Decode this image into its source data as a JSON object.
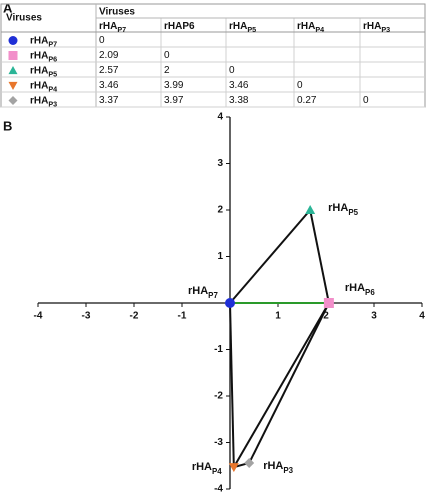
{
  "table": {
    "panel_label": "A",
    "corner": "Viruses",
    "header": "Viruses",
    "columns": [
      {
        "base": "rHA",
        "sub": "P7"
      },
      {
        "base": "rHAP6"
      },
      {
        "base": "rHA",
        "sub": "P5"
      },
      {
        "base": "rHA",
        "sub": "P4"
      },
      {
        "base": "rHA",
        "sub": "P3"
      }
    ],
    "rows": [
      {
        "base": "rHA",
        "sub": "P7",
        "values": [
          0
        ]
      },
      {
        "base": "rHA",
        "sub": "P6",
        "values": [
          2.09,
          0
        ]
      },
      {
        "base": "rHA",
        "sub": "P5",
        "values": [
          2.57,
          2,
          0
        ]
      },
      {
        "base": "rHA",
        "sub": "P4",
        "values": [
          3.46,
          3.99,
          3.46,
          0
        ]
      },
      {
        "base": "rHA",
        "sub": "P3",
        "values": [
          3.37,
          3.97,
          3.38,
          0.27,
          0
        ]
      }
    ]
  },
  "chart_data": {
    "type": "scatter",
    "panel_label": "B",
    "xlim": [
      -4,
      4
    ],
    "ylim": [
      -4,
      4
    ],
    "xticks": [
      -4,
      -3,
      -2,
      -1,
      1,
      2,
      3,
      4
    ],
    "yticks": [
      4,
      3,
      2,
      1,
      -1,
      -2,
      -3,
      -4
    ],
    "points": [
      {
        "base": "rHA",
        "sub": "P7",
        "x": 0,
        "y": 0,
        "color": "#1f2fd6",
        "marker": "circle"
      },
      {
        "base": "rHA",
        "sub": "P6",
        "x": 2.06,
        "y": 0,
        "color": "#f28fca",
        "marker": "square"
      },
      {
        "base": "rHA",
        "sub": "P5",
        "x": 1.67,
        "y": 2.0,
        "color": "#2bb597",
        "marker": "triangle-up"
      },
      {
        "base": "rHA",
        "sub": "P4",
        "x": 0.08,
        "y": -3.53,
        "color": "#e8762c",
        "marker": "triangle-down"
      },
      {
        "base": "rHA",
        "sub": "P3",
        "x": 0.4,
        "y": -3.44,
        "color": "#a3a3a3",
        "marker": "diamond"
      }
    ]
  }
}
